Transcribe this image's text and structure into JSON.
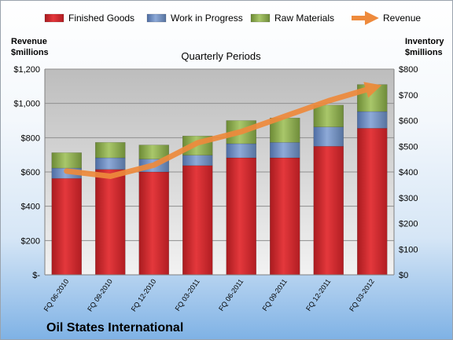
{
  "chart_data": {
    "type": "bar",
    "stacked": true,
    "title": "Quarterly Periods",
    "company": "Oil States International",
    "ylabel_left": [
      "Revenue",
      "$millions"
    ],
    "ylabel_right": [
      "Inventory",
      "$millions"
    ],
    "categories": [
      "FQ 06-2010",
      "FQ 09-2010",
      "FQ 12-2010",
      "FQ 03-2011",
      "FQ 06-2011",
      "FQ 09-2011",
      "FQ 12-2011",
      "FQ 03-2012"
    ],
    "series": [
      {
        "name": "Finished Goods",
        "axis": "right",
        "color": "#d8262b",
        "values": [
          375,
          410,
          400,
          425,
          455,
          455,
          500,
          570
        ]
      },
      {
        "name": "Work in Progress",
        "axis": "right",
        "color": "#6f8fc4",
        "values": [
          40,
          45,
          50,
          40,
          55,
          60,
          75,
          65
        ]
      },
      {
        "name": "Raw Materials",
        "axis": "right",
        "color": "#93b356",
        "values": [
          60,
          60,
          55,
          75,
          90,
          95,
          85,
          105
        ]
      },
      {
        "name": "Revenue",
        "axis": "left",
        "type": "line",
        "color": "#ee8a3c",
        "values": [
          605,
          575,
          640,
          770,
          835,
          925,
          1015,
          1090
        ]
      }
    ],
    "left_axis": {
      "min": 0,
      "max": 1200,
      "ticks": [
        0,
        200,
        400,
        600,
        800,
        1000,
        1200
      ],
      "tick_labels": [
        "$-",
        "$200",
        "$400",
        "$600",
        "$800",
        "$1,000",
        "$1,200"
      ]
    },
    "right_axis": {
      "min": 0,
      "max": 800,
      "ticks": [
        0,
        100,
        200,
        300,
        400,
        500,
        600,
        700,
        800
      ],
      "tick_labels": [
        "$0",
        "$100",
        "$200",
        "$300",
        "$400",
        "$500",
        "$600",
        "$700",
        "$800"
      ]
    },
    "legend_position": "top",
    "grid": true
  }
}
